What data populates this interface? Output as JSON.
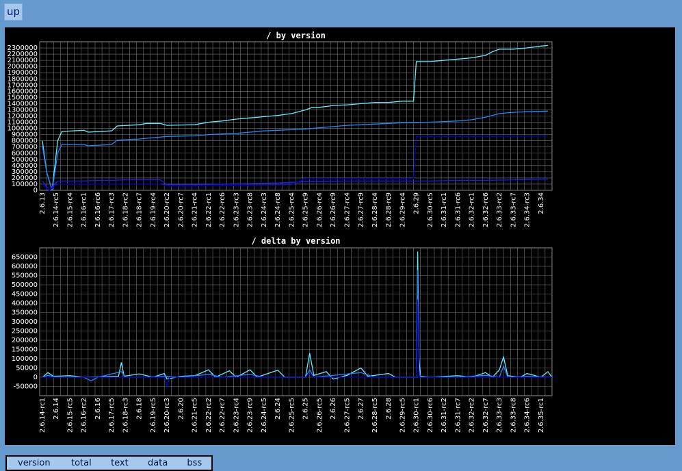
{
  "nav": {
    "up_label": "up"
  },
  "table": {
    "headers": [
      "version",
      "total",
      "text",
      "data",
      "bss"
    ]
  },
  "chart_data": [
    {
      "type": "line",
      "title": "/ by version",
      "xlabel": "",
      "ylabel": "",
      "ylim": [
        0,
        2400000
      ],
      "yticks": [
        0,
        100000,
        200000,
        300000,
        400000,
        500000,
        600000,
        700000,
        800000,
        900000,
        1000000,
        1100000,
        1200000,
        1300000,
        1400000,
        1500000,
        1600000,
        1700000,
        1800000,
        1900000,
        2000000,
        2100000,
        2200000,
        2300000
      ],
      "grid": true,
      "xtick_labels": [
        "2.6.13",
        "2.6.14-rc5",
        "2.6.15-rc4",
        "2.6.16-rc1",
        "2.6.16-rc6",
        "2.6.17-rc3",
        "2.6.18-rc2",
        "2.6.18-rc7",
        "2.6.19-rc4",
        "2.6.20-rc2",
        "2.6.20-rc7",
        "2.6.21-rc4",
        "2.6.22-rc1",
        "2.6.22-rc6",
        "2.6.23-rc3",
        "2.6.23-rc8",
        "2.6.24-rc3",
        "2.6.24-rc8",
        "2.6.25-rc4",
        "2.6.25-rc9",
        "2.6.26-rc4",
        "2.6.26-rc9",
        "2.6.27-rc4",
        "2.6.27-rc9",
        "2.6.28-rc4",
        "2.6.28-rc9",
        "2.6.29-rc4",
        "2.6.29",
        "2.6.30-rc5",
        "2.6.31-rc1",
        "2.6.31-rc6",
        "2.6.32-rc1",
        "2.6.32-rc6",
        "2.6.33-rc2",
        "2.6.33-rc7",
        "2.6.34-rc3",
        "2.6.34"
      ],
      "series": [
        {
          "color": "#66eeff",
          "points": [
            [
              0,
              800000
            ],
            [
              0.3,
              300000
            ],
            [
              0.7,
              0
            ],
            [
              1.1,
              800000
            ],
            [
              1.4,
              950000
            ],
            [
              3,
              970000
            ],
            [
              3.3,
              940000
            ],
            [
              5,
              960000
            ],
            [
              5.4,
              1040000
            ],
            [
              7,
              1060000
            ],
            [
              7.5,
              1080000
            ],
            [
              8.5,
              1080000
            ],
            [
              9,
              1050000
            ],
            [
              11,
              1060000
            ],
            [
              12,
              1100000
            ],
            [
              13,
              1120000
            ],
            [
              14,
              1150000
            ],
            [
              15,
              1170000
            ],
            [
              16,
              1190000
            ],
            [
              17,
              1210000
            ],
            [
              18,
              1240000
            ],
            [
              19,
              1300000
            ],
            [
              19.5,
              1340000
            ],
            [
              20,
              1340000
            ],
            [
              21,
              1370000
            ],
            [
              22,
              1380000
            ],
            [
              23,
              1400000
            ],
            [
              24,
              1420000
            ],
            [
              25,
              1420000
            ],
            [
              26,
              1440000
            ],
            [
              26.8,
              1440000
            ],
            [
              27,
              2080000
            ],
            [
              28,
              2080000
            ],
            [
              29,
              2100000
            ],
            [
              30,
              2120000
            ],
            [
              31,
              2140000
            ],
            [
              32,
              2180000
            ],
            [
              32.5,
              2240000
            ],
            [
              33,
              2280000
            ],
            [
              34,
              2280000
            ],
            [
              35,
              2300000
            ],
            [
              36,
              2330000
            ],
            [
              36.5,
              2340000
            ]
          ]
        },
        {
          "color": "#2288ff",
          "points": [
            [
              0,
              720000
            ],
            [
              0.3,
              300000
            ],
            [
              0.7,
              0
            ],
            [
              1.1,
              600000
            ],
            [
              1.4,
              740000
            ],
            [
              3,
              740000
            ],
            [
              3.3,
              720000
            ],
            [
              5,
              740000
            ],
            [
              5.4,
              810000
            ],
            [
              7,
              830000
            ],
            [
              8,
              850000
            ],
            [
              9,
              870000
            ],
            [
              11,
              880000
            ],
            [
              12,
              900000
            ],
            [
              13,
              910000
            ],
            [
              14,
              920000
            ],
            [
              15,
              940000
            ],
            [
              16,
              960000
            ],
            [
              17,
              970000
            ],
            [
              18,
              980000
            ],
            [
              19,
              990000
            ],
            [
              20,
              1010000
            ],
            [
              21,
              1030000
            ],
            [
              22,
              1050000
            ],
            [
              23,
              1060000
            ],
            [
              24,
              1070000
            ],
            [
              25,
              1080000
            ],
            [
              26,
              1090000
            ],
            [
              27,
              1090000
            ],
            [
              28,
              1100000
            ],
            [
              29,
              1110000
            ],
            [
              30,
              1120000
            ],
            [
              31,
              1140000
            ],
            [
              32,
              1180000
            ],
            [
              33,
              1240000
            ],
            [
              34,
              1260000
            ],
            [
              35,
              1270000
            ],
            [
              36.5,
              1280000
            ]
          ]
        },
        {
          "color": "#1a1aff",
          "points": [
            [
              0,
              150000
            ],
            [
              0.5,
              0
            ],
            [
              1.1,
              150000
            ],
            [
              3,
              150000
            ],
            [
              4,
              160000
            ],
            [
              5,
              160000
            ],
            [
              6,
              170000
            ],
            [
              7,
              170000
            ],
            [
              8.5,
              170000
            ],
            [
              9,
              90000
            ],
            [
              11,
              90000
            ],
            [
              13,
              100000
            ],
            [
              15,
              110000
            ],
            [
              17,
              120000
            ],
            [
              18,
              130000
            ],
            [
              19,
              140000
            ],
            [
              20,
              140000
            ],
            [
              22,
              150000
            ],
            [
              24,
              150000
            ],
            [
              26,
              150000
            ],
            [
              27,
              150000
            ],
            [
              28,
              150000
            ],
            [
              30,
              160000
            ],
            [
              32,
              160000
            ],
            [
              34,
              170000
            ],
            [
              36.5,
              180000
            ]
          ]
        },
        {
          "color": "#0000bb",
          "points": [
            [
              0,
              100000
            ],
            [
              0.5,
              0
            ],
            [
              1.1,
              100000
            ],
            [
              8.5,
              100000
            ],
            [
              9,
              70000
            ],
            [
              11,
              70000
            ],
            [
              15,
              80000
            ],
            [
              18,
              90000
            ],
            [
              19,
              190000
            ],
            [
              20,
              190000
            ],
            [
              22,
              190000
            ],
            [
              24,
              190000
            ],
            [
              26,
              190000
            ],
            [
              26.8,
              190000
            ],
            [
              27,
              870000
            ],
            [
              30,
              870000
            ],
            [
              33,
              870000
            ],
            [
              36.5,
              880000
            ]
          ]
        }
      ]
    },
    {
      "type": "line",
      "title": "/ delta by version",
      "xlabel": "",
      "ylabel": "",
      "ylim": [
        -100000,
        700000
      ],
      "yticks": [
        -50000,
        0,
        50000,
        100000,
        150000,
        200000,
        250000,
        300000,
        350000,
        400000,
        450000,
        500000,
        550000,
        600000,
        650000
      ],
      "grid": true,
      "xtick_labels": [
        "2.6.14-rc1",
        "2.6.14",
        "2.6.15-rc5",
        "2.6.16-rc2",
        "2.6.16",
        "2.6.17-rc5",
        "2.6.18-rc3",
        "2.6.18",
        "2.6.19-rc5",
        "2.6.20-rc3",
        "2.6.20",
        "2.6.21-rc5",
        "2.6.22-rc2",
        "2.6.22-rc7",
        "2.6.23-rc4",
        "2.6.23-rc9",
        "2.6.24-rc5",
        "2.6.24",
        "2.6.25-rc5",
        "2.6.25",
        "2.6.26-rc5",
        "2.6.26",
        "2.6.27-rc5",
        "2.6.27",
        "2.6.28-rc5",
        "2.6.28",
        "2.6.29-rc5",
        "2.6.30-rc1",
        "2.6.30-rc6",
        "2.6.31-rc2",
        "2.6.31-rc7",
        "2.6.32-rc2",
        "2.6.32-rc7",
        "2.6.33-rc3",
        "2.6.33-rc8",
        "2.6.34-rc6",
        "2.6.35-rc1"
      ],
      "series": [
        {
          "color": "#66eeff",
          "points": [
            [
              0,
              0
            ],
            [
              0.4,
              25000
            ],
            [
              0.8,
              5000
            ],
            [
              2,
              8000
            ],
            [
              3,
              0
            ],
            [
              5.5,
              5000
            ],
            [
              5.7,
              80000
            ],
            [
              5.9,
              5000
            ],
            [
              7,
              18000
            ],
            [
              8,
              0
            ],
            [
              8.8,
              20000
            ],
            [
              9,
              -10000
            ],
            [
              10,
              5000
            ],
            [
              11,
              8000
            ],
            [
              12,
              40000
            ],
            [
              12.5,
              0
            ],
            [
              13.5,
              35000
            ],
            [
              14,
              0
            ],
            [
              15,
              40000
            ],
            [
              15.5,
              0
            ],
            [
              17,
              38000
            ],
            [
              17.5,
              0
            ],
            [
              19,
              0
            ],
            [
              19.3,
              130000
            ],
            [
              19.6,
              10000
            ],
            [
              20.5,
              30000
            ],
            [
              21,
              -10000
            ],
            [
              22,
              10000
            ],
            [
              23,
              50000
            ],
            [
              23.5,
              5000
            ],
            [
              25,
              20000
            ],
            [
              25.5,
              0
            ],
            [
              27,
              0
            ],
            [
              27.1,
              680000
            ],
            [
              27.2,
              100000
            ],
            [
              27.3,
              5000
            ],
            [
              28,
              0
            ],
            [
              30,
              8000
            ],
            [
              31,
              0
            ],
            [
              32,
              25000
            ],
            [
              32.5,
              0
            ],
            [
              33,
              40000
            ],
            [
              33.3,
              110000
            ],
            [
              33.6,
              8000
            ],
            [
              34.5,
              0
            ],
            [
              35,
              20000
            ],
            [
              36,
              0
            ],
            [
              36.5,
              30000
            ],
            [
              36.8,
              0
            ]
          ]
        },
        {
          "color": "#2288ff",
          "points": [
            [
              0,
              0
            ],
            [
              0.4,
              10000
            ],
            [
              1,
              0
            ],
            [
              3,
              0
            ],
            [
              3.5,
              -20000
            ],
            [
              4,
              0
            ],
            [
              5.7,
              30000
            ],
            [
              6,
              0
            ],
            [
              7,
              0
            ],
            [
              9,
              5000
            ],
            [
              10,
              0
            ],
            [
              12,
              15000
            ],
            [
              13,
              0
            ],
            [
              15,
              15000
            ],
            [
              16,
              0
            ],
            [
              19,
              0
            ],
            [
              19.3,
              40000
            ],
            [
              19.6,
              0
            ],
            [
              23,
              25000
            ],
            [
              24,
              0
            ],
            [
              27,
              0
            ],
            [
              27.1,
              580000
            ],
            [
              27.2,
              40000
            ],
            [
              27.3,
              0
            ],
            [
              30,
              0
            ],
            [
              32,
              10000
            ],
            [
              33,
              0
            ],
            [
              33.3,
              60000
            ],
            [
              33.6,
              0
            ],
            [
              35,
              5000
            ],
            [
              36.8,
              0
            ]
          ]
        },
        {
          "color": "#0000cc",
          "points": [
            [
              0,
              0
            ],
            [
              8.8,
              0
            ],
            [
              9,
              -50000
            ],
            [
              9.2,
              0
            ],
            [
              19,
              0
            ],
            [
              19.3,
              20000
            ],
            [
              19.6,
              0
            ],
            [
              27,
              0
            ],
            [
              27.1,
              420000
            ],
            [
              27.2,
              0
            ],
            [
              36.8,
              0
            ]
          ]
        }
      ]
    }
  ]
}
